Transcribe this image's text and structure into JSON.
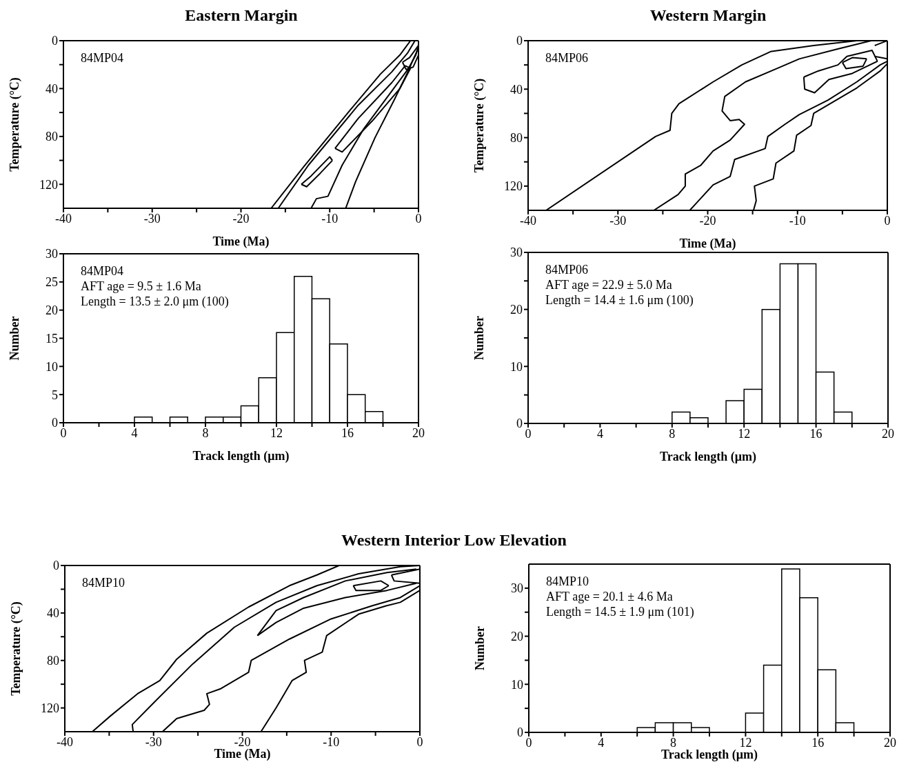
{
  "chart_data": [
    {
      "type": "line",
      "title": "Eastern Margin",
      "xlabel": "Time (Ma)",
      "ylabel": "Temperature (°C)",
      "annotations": [
        "84MP04"
      ],
      "xlim": [
        -40,
        0
      ],
      "ylim": [
        140,
        0
      ],
      "xticks": [
        -40,
        {
          "value": -35,
          "label": null
        },
        -30,
        {
          "value": -25,
          "label": null
        },
        -20,
        {
          "value": -15,
          "label": null
        },
        -10,
        {
          "value": -5,
          "label": null
        },
        0
      ],
      "yticks": [
        0,
        {
          "value": 20,
          "label": null
        },
        40,
        {
          "value": 60,
          "label": null
        },
        80,
        {
          "value": 100,
          "label": null
        },
        120
      ],
      "series": [
        {
          "color": "#000000",
          "x": [
            -16.6,
            -13.0,
            -7.7,
            -4.3,
            -2.1,
            -0.9
          ],
          "values": [
            140,
            106,
            58,
            28,
            12,
            0
          ]
        },
        {
          "color": "#000000",
          "x": [
            -15.8,
            -12.4,
            -6.8,
            -3.0,
            -1.2,
            -0.4
          ],
          "values": [
            140,
            104,
            54,
            26,
            10,
            0
          ]
        },
        {
          "color": "#000000",
          "x": [
            -12.1,
            -11.5,
            -10.2,
            -8.6,
            -6.2,
            -3.0,
            -1.2,
            -0.3,
            0
          ],
          "values": [
            140,
            132,
            130,
            104,
            74,
            42,
            24,
            12,
            4
          ]
        },
        {
          "color": "#000000",
          "x": [
            -8.2,
            -7.1,
            -4.9,
            -2.7,
            -1.2,
            -0.5,
            0
          ],
          "values": [
            140,
            118,
            81,
            49,
            26,
            14,
            6
          ]
        },
        {
          "color": "#000000",
          "x": [
            -9.4,
            -6.8,
            -3.0,
            -1.5,
            -0.9
          ],
          "values": [
            90,
            65,
            35,
            21,
            23
          ]
        },
        {
          "color": "#000000",
          "x": [
            -9.4,
            -8.6,
            -5.2,
            -2.1,
            -0.9
          ],
          "values": [
            90,
            93,
            67,
            40,
            23
          ]
        },
        {
          "color": "#000000",
          "x": [
            -13.2,
            -12.1,
            -10.0,
            -9.7
          ],
          "values": [
            120,
            113,
            97,
            100
          ]
        },
        {
          "color": "#000000",
          "x": [
            -13.2,
            -12.6,
            -11.1,
            -9.7
          ],
          "values": [
            120,
            122,
            111,
            100
          ]
        },
        {
          "color": "#000000",
          "x": [
            -1.8,
            -1.0,
            -0.2,
            0
          ],
          "values": [
            18,
            14,
            6,
            4
          ]
        },
        {
          "color": "#000000",
          "x": [
            -1.8,
            -1.4,
            -0.6,
            0
          ],
          "values": [
            18,
            24,
            22,
            12
          ]
        }
      ]
    },
    {
      "type": "histogram",
      "xlabel": "Track length (μm)",
      "ylabel": "Number",
      "annotations": [
        "84MP04",
        "AFT age = 9.5 ± 1.6 Ma",
        "Length = 13.5 ± 2.0 μm (100)"
      ],
      "color": "#ffffff",
      "bins": [
        0,
        1,
        2,
        3,
        4,
        5,
        6,
        7,
        8,
        9,
        10,
        11,
        12,
        13,
        14,
        15,
        16,
        17,
        18,
        19,
        20
      ],
      "values": [
        0,
        0,
        0,
        0,
        1,
        0,
        1,
        0,
        1,
        1,
        3,
        8,
        16,
        26,
        22,
        14,
        5,
        2,
        0,
        0
      ],
      "xlim": [
        0,
        20
      ],
      "xticks": [
        0,
        {
          "value": 2,
          "label": null
        },
        4,
        {
          "value": 6,
          "label": null
        },
        8,
        {
          "value": 10,
          "label": null
        },
        12,
        {
          "value": 14,
          "label": null
        },
        16,
        {
          "value": 18,
          "label": null
        },
        20
      ],
      "ylim": [
        0,
        30
      ],
      "yticks": [
        0,
        5,
        10,
        15,
        20,
        25,
        30
      ]
    },
    {
      "type": "line",
      "title": "Western Margin",
      "xlabel": "Time (Ma)",
      "ylabel": "Temperature (°C)",
      "annotations": [
        "84MP06"
      ],
      "xlim": [
        -40,
        0
      ],
      "ylim": [
        140,
        0
      ],
      "xticks": [
        -40,
        {
          "value": -35,
          "label": null
        },
        -30,
        {
          "value": -25,
          "label": null
        },
        -20,
        {
          "value": -15,
          "label": null
        },
        -10,
        {
          "value": -5,
          "label": null
        },
        0
      ],
      "yticks": [
        0,
        {
          "value": 20,
          "label": null
        },
        40,
        {
          "value": 60,
          "label": null
        },
        80,
        {
          "value": 100,
          "label": null
        },
        120
      ],
      "series": [
        {
          "color": "#000000",
          "x": [
            -38.0,
            -25.8,
            -24.2,
            -24.0,
            -23.2,
            -19.4,
            -16.2,
            -13.0,
            -8.2,
            -3.4
          ],
          "values": [
            140,
            79,
            74,
            60,
            52,
            34,
            20,
            9,
            4,
            0
          ]
        },
        {
          "color": "#000000",
          "x": [
            -26.0,
            -23.3,
            -22.5,
            -22.5,
            -20.8,
            -19.4,
            -17.5,
            -15.9,
            -16.5,
            -17.5,
            -18.4,
            -18.1,
            -15.8,
            -12.3,
            -9.8,
            -5.6,
            -1.8
          ],
          "values": [
            140,
            127,
            120,
            110,
            103,
            91,
            82,
            69,
            65,
            66,
            58,
            46,
            34,
            23,
            15,
            7,
            0
          ]
        },
        {
          "color": "#000000",
          "x": [
            -22.0,
            -19.4,
            -17.5,
            -17.0,
            -13.6,
            -13.3,
            -11.4,
            -9.8,
            -6.6,
            -3.4,
            -0.8,
            0
          ],
          "values": [
            140,
            119,
            112,
            98,
            89,
            79,
            69,
            61,
            49,
            34,
            20,
            17
          ]
        },
        {
          "color": "#000000",
          "x": [
            -14.9,
            -14.6,
            -14.8,
            -12.7,
            -12.4,
            -10.4,
            -10.1,
            -8.5,
            -8.2,
            -6.6,
            -3.4,
            -0.8,
            0
          ],
          "values": [
            140,
            132,
            120,
            114,
            101,
            91,
            78,
            70,
            60,
            53,
            39,
            25,
            19
          ]
        },
        {
          "color": "#000000",
          "x": [
            -9.3,
            -7.7,
            -5.5,
            -4.5,
            -1.7,
            -1.1
          ],
          "values": [
            30,
            25,
            20,
            13,
            8,
            17
          ]
        },
        {
          "color": "#000000",
          "x": [
            -9.3,
            -9.2,
            -8.1,
            -6.5,
            -3.9,
            -1.1
          ],
          "values": [
            30,
            40,
            43,
            32,
            27,
            17
          ]
        },
        {
          "color": "#000000",
          "x": [
            -5.0,
            -3.9,
            -2.3
          ],
          "values": [
            18,
            14,
            15
          ]
        },
        {
          "color": "#000000",
          "x": [
            -5.0,
            -4.6,
            -2.7,
            -2.3
          ],
          "values": [
            18,
            23,
            21,
            15
          ]
        },
        {
          "color": "#000000",
          "x": [
            -1.4,
            0
          ],
          "values": [
            4,
            0
          ]
        },
        {
          "color": "#000000",
          "x": [
            -1.4,
            0
          ],
          "values": [
            13,
            15
          ]
        }
      ]
    },
    {
      "type": "histogram",
      "xlabel": "Track length (μm)",
      "ylabel": "Number",
      "annotations": [
        "84MP06",
        "AFT age = 22.9 ± 5.0 Ma",
        "Length = 14.4 ± 1.6 μm (100)"
      ],
      "color": "#ffffff",
      "bins": [
        0,
        1,
        2,
        3,
        4,
        5,
        6,
        7,
        8,
        9,
        10,
        11,
        12,
        13,
        14,
        15,
        16,
        17,
        18,
        19,
        20
      ],
      "values": [
        0,
        0,
        0,
        0,
        0,
        0,
        0,
        0,
        2,
        1,
        0,
        4,
        6,
        20,
        28,
        28,
        9,
        2,
        0,
        0
      ],
      "xlim": [
        0,
        20
      ],
      "xticks": [
        0,
        {
          "value": 2,
          "label": null
        },
        4,
        {
          "value": 6,
          "label": null
        },
        8,
        {
          "value": 10,
          "label": null
        },
        12,
        {
          "value": 14,
          "label": null
        },
        16,
        {
          "value": 18,
          "label": null
        },
        20
      ],
      "ylim": [
        0,
        30
      ],
      "yticks": [
        0,
        {
          "value": 5,
          "label": null
        },
        10,
        {
          "value": 15,
          "label": null
        },
        20,
        {
          "value": 25,
          "label": null
        },
        30
      ]
    },
    {
      "type": "line",
      "title": "Western Interior Low Elevation",
      "xlabel": "Time (Ma)",
      "ylabel": "Temperature (°C)",
      "annotations": [
        "84MP10"
      ],
      "xlim": [
        -40,
        0
      ],
      "ylim": [
        140,
        0
      ],
      "xticks": [
        -40,
        {
          "value": -35,
          "label": null
        },
        -30,
        {
          "value": -25,
          "label": null
        },
        -20,
        {
          "value": -15,
          "label": null
        },
        -10,
        {
          "value": -5,
          "label": null
        },
        0
      ],
      "yticks": [
        0,
        {
          "value": 20,
          "label": null
        },
        40,
        {
          "value": 60,
          "label": null
        },
        80,
        {
          "value": 100,
          "label": null
        },
        120
      ],
      "series": [
        {
          "color": "#000000",
          "x": [
            -36.9,
            -34.9,
            -31.8,
            -29.3,
            -27.4,
            -24.0,
            -19.3,
            -14.7,
            -11.6,
            -9.1
          ],
          "values": [
            140,
            127,
            108,
            97,
            79,
            57,
            35,
            17,
            8,
            0
          ]
        },
        {
          "color": "#000000",
          "x": [
            -32.3,
            -32.4,
            -29.9,
            -25.6,
            -20.9,
            -16.2,
            -11.6,
            -6.9,
            -2.2,
            0
          ],
          "values": [
            140,
            134,
            115,
            83,
            52,
            31,
            17,
            7,
            1,
            0
          ]
        },
        {
          "color": "#000000",
          "x": [
            -29.0,
            -27.4,
            -24.3,
            -23.7,
            -24.0,
            -22.5,
            -19.3,
            -19.0,
            -14.7,
            -10.0,
            -5.4,
            -2.2,
            0
          ],
          "values": [
            140,
            129,
            122,
            117,
            108,
            104,
            90,
            80,
            62,
            45,
            34,
            27,
            17
          ]
        },
        {
          "color": "#000000",
          "x": [
            -17.9,
            -16.2,
            -14.4,
            -12.8,
            -13.0,
            -11.0,
            -10.5,
            -6.9,
            -3.8,
            -2.2,
            0
          ],
          "values": [
            140,
            120,
            97,
            90,
            80,
            73,
            59,
            41,
            34,
            31,
            21
          ]
        },
        {
          "color": "#000000",
          "x": [
            -18.3,
            -16.2,
            -13.1,
            -8.4,
            -3.7,
            -0.4
          ],
          "values": [
            59,
            38,
            27,
            13,
            6,
            3
          ]
        },
        {
          "color": "#000000",
          "x": [
            -18.3,
            -16.2,
            -13.1,
            -8.4,
            -3.7,
            -0.4
          ],
          "values": [
            59,
            48,
            36,
            27,
            21,
            15
          ]
        },
        {
          "color": "#000000",
          "x": [
            -7.5,
            -4.4,
            -3.5
          ],
          "values": [
            17,
            13,
            17
          ]
        },
        {
          "color": "#000000",
          "x": [
            -7.5,
            -7.2,
            -4.4,
            -3.5
          ],
          "values": [
            17,
            21,
            21,
            17
          ]
        },
        {
          "color": "#000000",
          "x": [
            -3.2,
            0
          ],
          "values": [
            8,
            3
          ]
        },
        {
          "color": "#000000",
          "x": [
            -3.2,
            -2.9,
            0
          ],
          "values": [
            8,
            13,
            15
          ]
        }
      ]
    },
    {
      "type": "histogram",
      "xlabel": "Track length (μm)",
      "ylabel": "Number",
      "annotations": [
        "84MP10",
        "AFT age = 20.1 ± 4.6 Ma",
        "Length = 14.5 ± 1.9 μm (101)"
      ],
      "color": "#ffffff",
      "bins": [
        0,
        1,
        2,
        3,
        4,
        5,
        6,
        7,
        8,
        9,
        10,
        11,
        12,
        13,
        14,
        15,
        16,
        17,
        18,
        19,
        20
      ],
      "values": [
        0,
        0,
        0,
        0,
        0,
        0,
        1,
        2,
        2,
        1,
        0,
        0,
        4,
        14,
        34,
        28,
        13,
        2,
        0,
        0
      ],
      "xlim": [
        0,
        20
      ],
      "xticks": [
        0,
        {
          "value": 2,
          "label": null
        },
        4,
        {
          "value": 6,
          "label": null
        },
        8,
        {
          "value": 10,
          "label": null
        },
        12,
        {
          "value": 14,
          "label": null
        },
        16,
        {
          "value": 18,
          "label": null
        },
        20
      ],
      "ylim": [
        0,
        35
      ],
      "yticks": [
        0,
        {
          "value": 5,
          "label": null
        },
        10,
        {
          "value": 15,
          "label": null
        },
        20,
        {
          "value": 25,
          "label": null
        },
        30
      ]
    }
  ]
}
